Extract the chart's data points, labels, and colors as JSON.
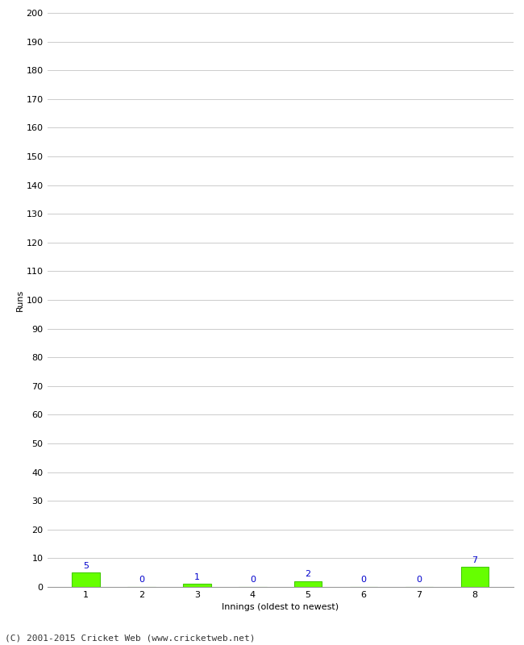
{
  "innings": [
    1,
    2,
    3,
    4,
    5,
    6,
    7,
    8
  ],
  "runs": [
    5,
    0,
    1,
    0,
    2,
    0,
    0,
    7
  ],
  "bar_color": "#66ff00",
  "bar_edge_color": "#44cc00",
  "label_color": "#0000cc",
  "xlabel": "Innings (oldest to newest)",
  "ylabel": "Runs",
  "ylim": [
    0,
    200
  ],
  "yticks": [
    0,
    10,
    20,
    30,
    40,
    50,
    60,
    70,
    80,
    90,
    100,
    110,
    120,
    130,
    140,
    150,
    160,
    170,
    180,
    190,
    200
  ],
  "background_color": "#ffffff",
  "grid_color": "#cccccc",
  "footer": "(C) 2001-2015 Cricket Web (www.cricketweb.net)",
  "footer_color": "#333333",
  "axis_label_fontsize": 8,
  "tick_label_fontsize": 8,
  "value_label_fontsize": 8,
  "footer_fontsize": 8
}
